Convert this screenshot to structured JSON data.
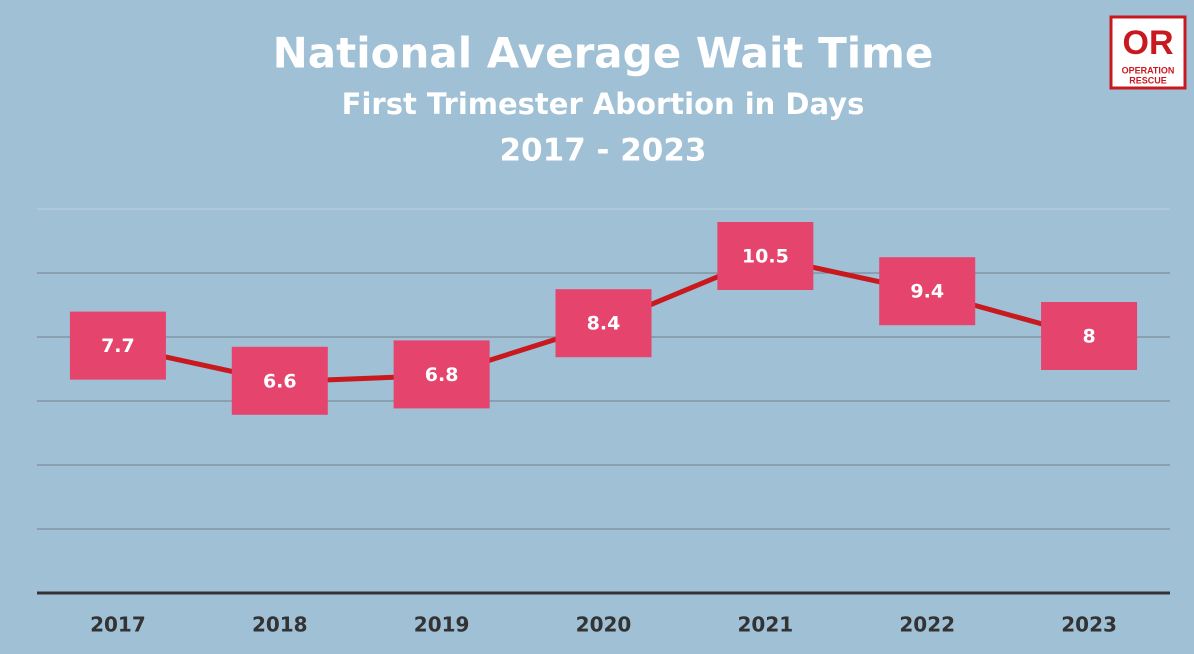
{
  "chart_data": {
    "type": "line",
    "title": "National Average Wait Time",
    "subtitle": "First Trimester Abortion in Days",
    "period": "2017 - 2023",
    "categories": [
      "2017",
      "2018",
      "2019",
      "2020",
      "2021",
      "2022",
      "2023"
    ],
    "values": [
      7.7,
      6.6,
      6.8,
      8.4,
      10.5,
      9.4,
      8
    ],
    "color": "#c8191f",
    "label_box_color": "#e5446d",
    "ylim": [
      0,
      12
    ],
    "yticks": [
      0,
      2,
      4,
      6,
      8,
      10,
      12
    ],
    "grid": true
  },
  "logo": {
    "mark": "OR",
    "line1": "OPERATION",
    "line2": "RESCUE"
  }
}
